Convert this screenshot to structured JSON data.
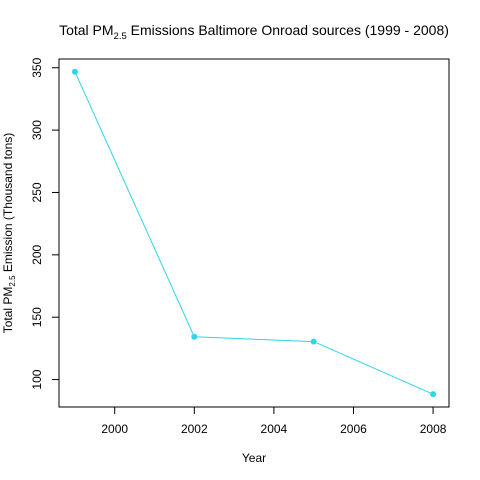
{
  "chart_data": {
    "type": "line",
    "title": {
      "prefix": "Total PM",
      "subscript": "2.5",
      "suffix": " Emissions Baltimore Onroad sources (1999 - 2008)"
    },
    "xlabel": "Year",
    "ylabel": {
      "prefix": "Total PM",
      "subscript": "2.5",
      "suffix": " Emission (Thousand tons)"
    },
    "x": [
      1999,
      2002,
      2005,
      2008
    ],
    "y": [
      346.8,
      134.3,
      130.4,
      88.3
    ],
    "xlim": [
      1998.6,
      2008.4
    ],
    "ylim": [
      78,
      357
    ],
    "xticks": [
      2000,
      2002,
      2004,
      2006,
      2008
    ],
    "yticks": [
      100,
      150,
      200,
      250,
      300,
      350
    ],
    "grid": false,
    "line_color": "#2ed6e6",
    "point_color": "#2ed6e6"
  }
}
